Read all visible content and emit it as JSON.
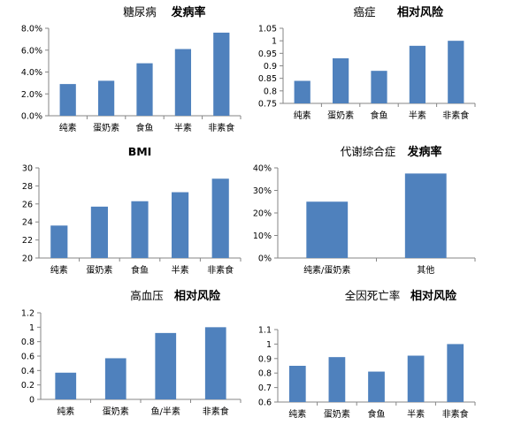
{
  "chart_data": [
    {
      "type": "bar",
      "title_main": "糖尿病",
      "title_metric": "发病率",
      "categories": [
        "纯素",
        "蛋奶素",
        "食鱼",
        "半素",
        "非素食"
      ],
      "values": [
        2.9,
        3.2,
        4.8,
        6.1,
        7.6
      ],
      "ylim": [
        0,
        8
      ],
      "yticks": [
        0,
        2,
        4,
        6,
        8
      ],
      "ytick_labels": [
        "0.0%",
        "2.0%",
        "4.0%",
        "6.0%",
        "8.0%"
      ],
      "grid": false,
      "bar_color": "#4f81bd"
    },
    {
      "type": "bar",
      "title_main": "癌症",
      "title_metric": "相对风险",
      "categories": [
        "纯素",
        "蛋奶素",
        "食鱼",
        "半素",
        "非素食"
      ],
      "values": [
        0.84,
        0.93,
        0.88,
        0.98,
        1.0
      ],
      "ylim": [
        0.75,
        1.05
      ],
      "yticks": [
        0.75,
        0.8,
        0.85,
        0.9,
        0.95,
        1.0,
        1.05
      ],
      "ytick_labels": [
        "0.75",
        "0.8",
        "0.85",
        "0.9",
        "0.95",
        "1",
        "1.05"
      ],
      "grid": false,
      "bar_color": "#4f81bd"
    },
    {
      "type": "bar",
      "title_main": "BMI",
      "title_metric": "",
      "categories": [
        "纯素",
        "蛋奶素",
        "食鱼",
        "半素",
        "非素食"
      ],
      "values": [
        23.6,
        25.7,
        26.3,
        27.3,
        28.8
      ],
      "ylim": [
        20,
        30
      ],
      "yticks": [
        20,
        22,
        24,
        26,
        28,
        30
      ],
      "ytick_labels": [
        "20",
        "22",
        "24",
        "26",
        "28",
        "30"
      ],
      "grid": false,
      "bar_color": "#4f81bd"
    },
    {
      "type": "bar",
      "title_main": "代谢综合症",
      "title_metric": "发病率",
      "categories": [
        "纯素/蛋奶素",
        "其他"
      ],
      "values": [
        25,
        37.5
      ],
      "ylim": [
        0,
        40
      ],
      "yticks": [
        0,
        10,
        20,
        30,
        40
      ],
      "ytick_labels": [
        "0%",
        "10%",
        "20%",
        "30%",
        "40%"
      ],
      "grid": false,
      "bar_color": "#4f81bd"
    },
    {
      "type": "bar",
      "title_main": "高血压",
      "title_metric": "相对风险",
      "categories": [
        "纯素",
        "蛋奶素",
        "鱼/半素",
        "非素食"
      ],
      "values": [
        0.37,
        0.57,
        0.92,
        1.0
      ],
      "ylim": [
        0,
        1.2
      ],
      "yticks": [
        0,
        0.2,
        0.4,
        0.6,
        0.8,
        1.0,
        1.2
      ],
      "ytick_labels": [
        "0",
        "0.2",
        "0.4",
        "0.6",
        "0.8",
        "1",
        "1.2"
      ],
      "grid": false,
      "bar_color": "#4f81bd"
    },
    {
      "type": "bar",
      "title_main": "全因死亡率",
      "title_metric": "相对风险",
      "categories": [
        "纯素",
        "蛋奶素",
        "食鱼",
        "半素",
        "非素食"
      ],
      "values": [
        0.85,
        0.91,
        0.81,
        0.92,
        1.0
      ],
      "ylim": [
        0.6,
        1.1
      ],
      "yticks": [
        0.6,
        0.7,
        0.8,
        0.9,
        1.0,
        1.1
      ],
      "ytick_labels": [
        "0.6",
        "0.7",
        "0.8",
        "0.9",
        "1",
        "1.1"
      ],
      "grid": false,
      "bar_color": "#4f81bd"
    }
  ]
}
